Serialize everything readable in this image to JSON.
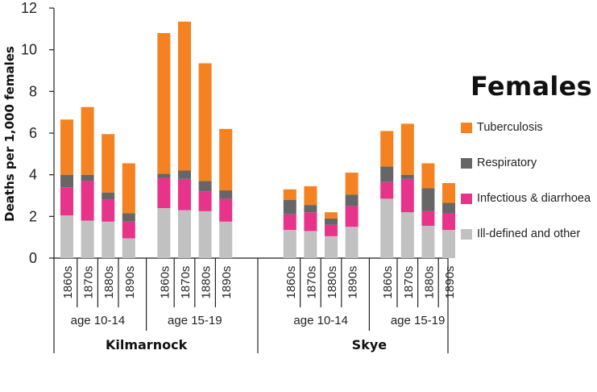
{
  "chart_data": {
    "type": "bar",
    "stacked": true,
    "title": "",
    "ylabel": "Deaths per 1,000 females",
    "ylim": [
      0,
      12
    ],
    "yticks": [
      0,
      2,
      4,
      6,
      8,
      10,
      12
    ],
    "grid": false,
    "legend": {
      "title": "Females",
      "position": "right",
      "order": [
        "Tuberculosis",
        "Respiratory",
        "Infectious & diarrhoea",
        "Ill-defined and other"
      ]
    },
    "categories": [
      "1860s",
      "1870s",
      "1880s",
      "1890s",
      "1860s",
      "1870s",
      "1880s",
      "1890s",
      "1860s",
      "1870s",
      "1880s",
      "1890s",
      "1860s",
      "1870s",
      "1880s",
      "1890s"
    ],
    "groups": [
      {
        "label": "age 10-14",
        "parent": "Kilmarnock",
        "range": [
          0,
          3
        ]
      },
      {
        "label": "age 15-19",
        "parent": "Kilmarnock",
        "range": [
          4,
          7
        ]
      },
      {
        "label": "age 10-14",
        "parent": "Skye",
        "range": [
          8,
          11
        ]
      },
      {
        "label": "age 15-19",
        "parent": "Skye",
        "range": [
          12,
          15
        ]
      }
    ],
    "supergroups": [
      {
        "label": "Kilmarnock",
        "range": [
          0,
          7
        ]
      },
      {
        "label": "Skye",
        "range": [
          8,
          15
        ]
      }
    ],
    "series": [
      {
        "name": "Ill-defined and other",
        "color": "#c1c1c1",
        "values": [
          2.05,
          1.8,
          1.75,
          0.95,
          2.4,
          2.3,
          2.25,
          1.75,
          1.35,
          1.3,
          1.05,
          1.5,
          2.85,
          2.2,
          1.55,
          1.35
        ]
      },
      {
        "name": "Infectious & diarrhoea",
        "color": "#e8338b",
        "values": [
          1.35,
          1.9,
          1.05,
          0.8,
          1.45,
          1.5,
          0.95,
          1.1,
          0.75,
          0.9,
          0.55,
          1.0,
          0.8,
          1.6,
          0.7,
          0.8
        ]
      },
      {
        "name": "Respiratory",
        "color": "#666666",
        "values": [
          0.6,
          0.3,
          0.35,
          0.4,
          0.2,
          0.4,
          0.5,
          0.4,
          0.7,
          0.35,
          0.3,
          0.55,
          0.75,
          0.2,
          1.1,
          0.5
        ]
      },
      {
        "name": "Tuberculosis",
        "color": "#f58220",
        "values": [
          2.65,
          3.25,
          2.8,
          2.4,
          6.75,
          7.15,
          5.65,
          2.95,
          0.5,
          0.9,
          0.3,
          1.05,
          1.7,
          2.45,
          1.2,
          0.95
        ]
      }
    ]
  }
}
